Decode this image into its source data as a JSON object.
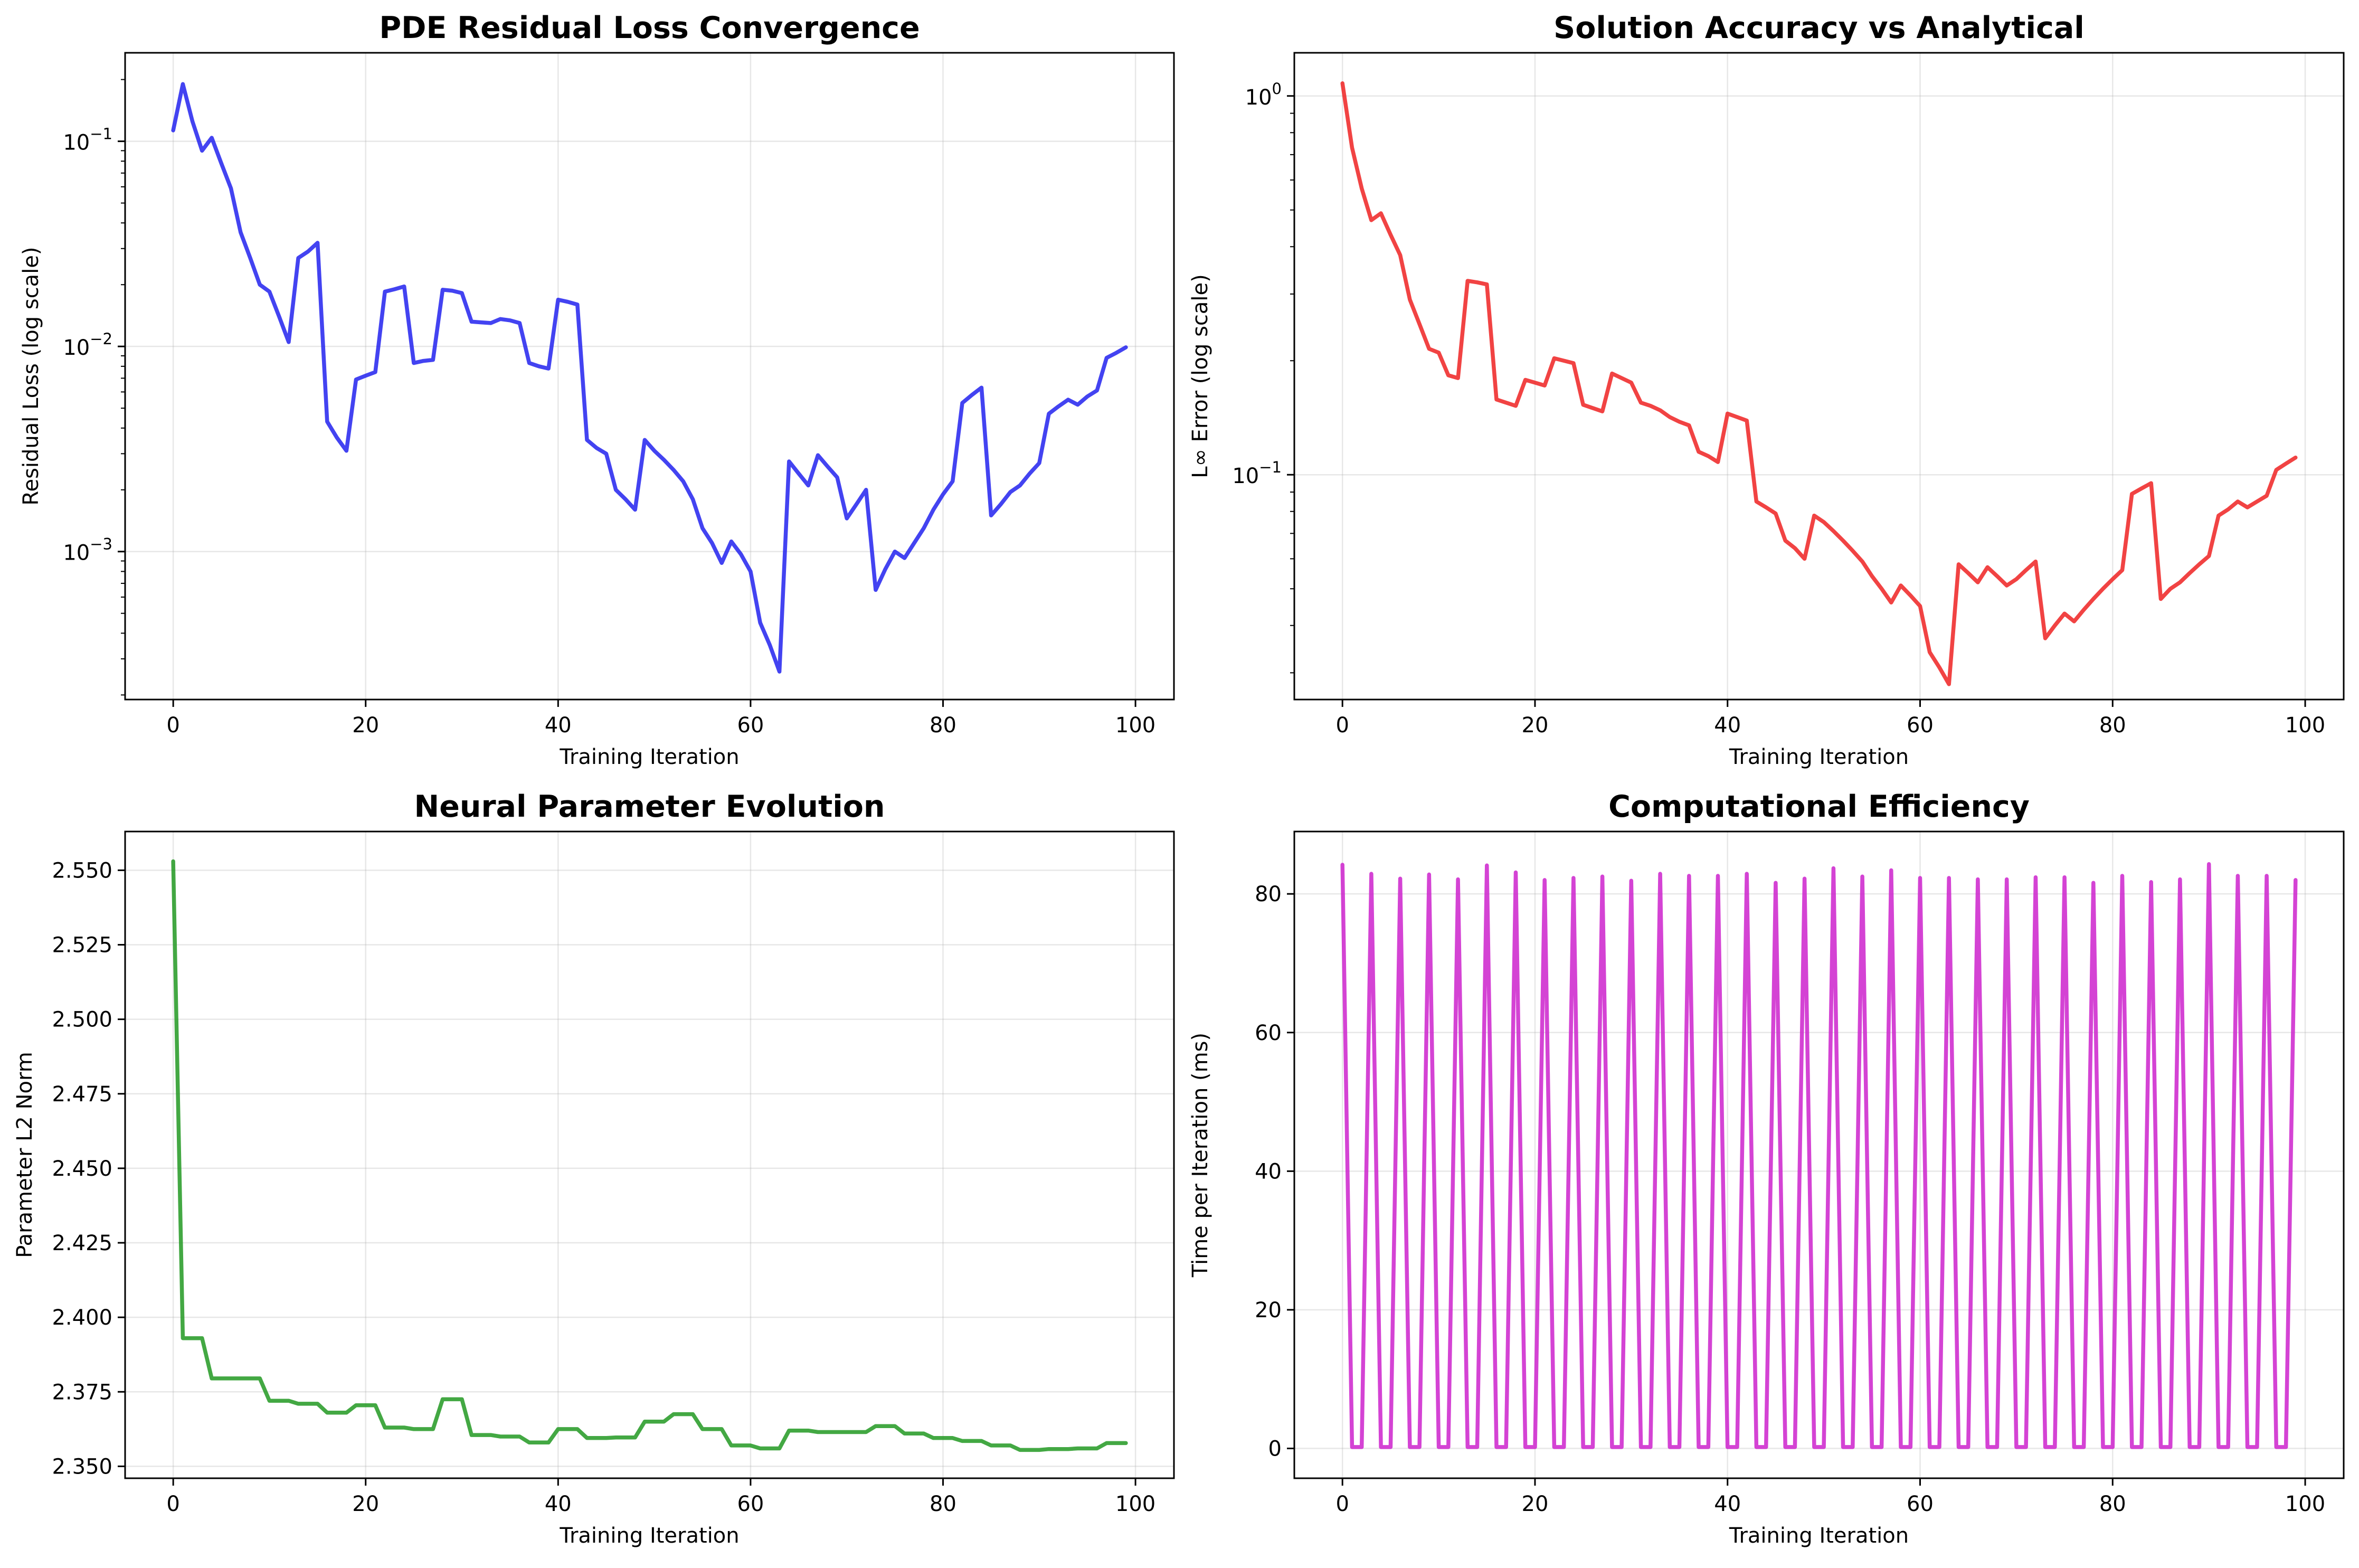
{
  "chart_data": [
    {
      "type": "line",
      "title": "PDE Residual Loss Convergence",
      "xlabel": "Training Iteration",
      "ylabel": "Residual Loss (log scale)",
      "yscale": "log",
      "xlim": [
        -5,
        104
      ],
      "ylim": [
        0.00019,
        0.27
      ],
      "xticks": [
        0,
        20,
        40,
        60,
        80,
        100
      ],
      "yticks": [
        {
          "value": 0.1,
          "base": "10",
          "exp": "−1"
        },
        {
          "value": 0.01,
          "base": "10",
          "exp": "−2"
        },
        {
          "value": 0.001,
          "base": "10",
          "exp": "−3"
        }
      ],
      "grid": true,
      "color": "#2222ee",
      "x": [
        0,
        1,
        2,
        3,
        4,
        5,
        6,
        7,
        8,
        9,
        10,
        11,
        12,
        13,
        14,
        15,
        16,
        17,
        18,
        19,
        20,
        21,
        22,
        23,
        24,
        25,
        26,
        27,
        28,
        29,
        30,
        31,
        32,
        33,
        34,
        35,
        36,
        37,
        38,
        39,
        40,
        41,
        42,
        43,
        44,
        45,
        46,
        47,
        48,
        49,
        50,
        51,
        52,
        53,
        54,
        55,
        56,
        57,
        58,
        59,
        60,
        61,
        62,
        63,
        64,
        65,
        66,
        67,
        68,
        69,
        70,
        71,
        72,
        73,
        74,
        75,
        76,
        77,
        78,
        79,
        80,
        81,
        82,
        83,
        84,
        85,
        86,
        87,
        88,
        89,
        90,
        91,
        92,
        93,
        94,
        95,
        96,
        97,
        98,
        99
      ],
      "y": [
        0.113,
        0.19,
        0.125,
        0.09,
        0.104,
        0.078,
        0.059,
        0.036,
        0.027,
        0.02,
        0.0185,
        0.014,
        0.0105,
        0.027,
        0.029,
        0.032,
        0.0043,
        0.0036,
        0.0031,
        0.0069,
        0.0072,
        0.0075,
        0.0185,
        0.019,
        0.0196,
        0.0083,
        0.0085,
        0.0086,
        0.0189,
        0.0187,
        0.0182,
        0.0132,
        0.0131,
        0.013,
        0.0136,
        0.0134,
        0.013,
        0.0083,
        0.008,
        0.0078,
        0.0169,
        0.0165,
        0.016,
        0.0035,
        0.0032,
        0.003,
        0.002,
        0.0018,
        0.0016,
        0.0035,
        0.0031,
        0.0028,
        0.0025,
        0.0022,
        0.0018,
        0.0013,
        0.0011,
        0.00088,
        0.00112,
        0.00097,
        0.0008,
        0.00045,
        0.00035,
        0.00026,
        0.00275,
        0.0024,
        0.0021,
        0.00295,
        0.0026,
        0.0023,
        0.00145,
        0.0017,
        0.002,
        0.00065,
        0.00082,
        0.001,
        0.00093,
        0.0011,
        0.0013,
        0.0016,
        0.0019,
        0.0022,
        0.0053,
        0.0058,
        0.0063,
        0.0015,
        0.0017,
        0.00195,
        0.0021,
        0.0024,
        0.0027,
        0.0047,
        0.0051,
        0.0055,
        0.0052,
        0.0057,
        0.0061,
        0.0088,
        0.0093,
        0.0099
      ]
    },
    {
      "type": "line",
      "title": "Solution Accuracy vs Analytical",
      "xlabel": "Training Iteration",
      "ylabel": "L∞ Error (log scale)",
      "yscale": "log",
      "xlim": [
        -5,
        104
      ],
      "ylim": [
        0.0255,
        1.3
      ],
      "xticks": [
        0,
        20,
        40,
        60,
        80,
        100
      ],
      "yticks": [
        {
          "value": 1.0,
          "base": "10",
          "exp": "0"
        },
        {
          "value": 0.1,
          "base": "10",
          "exp": "−1"
        }
      ],
      "grid": true,
      "color": "#ee2222",
      "x": [
        0,
        1,
        2,
        3,
        4,
        5,
        6,
        7,
        8,
        9,
        10,
        11,
        12,
        13,
        14,
        15,
        16,
        17,
        18,
        19,
        20,
        21,
        22,
        23,
        24,
        25,
        26,
        27,
        28,
        29,
        30,
        31,
        32,
        33,
        34,
        35,
        36,
        37,
        38,
        39,
        40,
        41,
        42,
        43,
        44,
        45,
        46,
        47,
        48,
        49,
        50,
        51,
        52,
        53,
        54,
        55,
        56,
        57,
        58,
        59,
        60,
        61,
        62,
        63,
        64,
        65,
        66,
        67,
        68,
        69,
        70,
        71,
        72,
        73,
        74,
        75,
        76,
        77,
        78,
        79,
        80,
        81,
        82,
        83,
        84,
        85,
        86,
        87,
        88,
        89,
        90,
        91,
        92,
        93,
        94,
        95,
        96,
        97,
        98,
        99
      ],
      "y": [
        1.08,
        0.73,
        0.57,
        0.47,
        0.49,
        0.43,
        0.38,
        0.29,
        0.25,
        0.215,
        0.21,
        0.183,
        0.18,
        0.325,
        0.322,
        0.318,
        0.158,
        0.155,
        0.152,
        0.178,
        0.175,
        0.172,
        0.203,
        0.2,
        0.197,
        0.153,
        0.15,
        0.147,
        0.185,
        0.18,
        0.175,
        0.155,
        0.152,
        0.148,
        0.142,
        0.138,
        0.135,
        0.115,
        0.112,
        0.108,
        0.145,
        0.142,
        0.139,
        0.085,
        0.082,
        0.079,
        0.067,
        0.064,
        0.06,
        0.078,
        0.075,
        0.071,
        0.067,
        0.063,
        0.059,
        0.054,
        0.05,
        0.046,
        0.051,
        0.048,
        0.045,
        0.034,
        0.031,
        0.028,
        0.058,
        0.055,
        0.052,
        0.057,
        0.054,
        0.051,
        0.053,
        0.056,
        0.059,
        0.037,
        0.04,
        0.043,
        0.041,
        0.044,
        0.047,
        0.05,
        0.053,
        0.056,
        0.089,
        0.092,
        0.095,
        0.047,
        0.05,
        0.052,
        0.055,
        0.058,
        0.061,
        0.078,
        0.081,
        0.085,
        0.082,
        0.085,
        0.088,
        0.103,
        0.107,
        0.111
      ]
    },
    {
      "type": "line",
      "title": "Neural Parameter Evolution",
      "xlabel": "Training Iteration",
      "ylabel": "Parameter L2 Norm",
      "yscale": "linear",
      "xlim": [
        -5,
        104
      ],
      "ylim": [
        2.346,
        2.563
      ],
      "xticks": [
        0,
        20,
        40,
        60,
        80,
        100
      ],
      "yticks": [
        2.35,
        2.375,
        2.4,
        2.425,
        2.45,
        2.475,
        2.5,
        2.525,
        2.55
      ],
      "ytick_labels": [
        "2.350",
        "2.375",
        "2.400",
        "2.425",
        "2.450",
        "2.475",
        "2.500",
        "2.525",
        "2.550"
      ],
      "grid": true,
      "color": "#229922",
      "x": [
        0,
        1,
        2,
        3,
        4,
        5,
        6,
        7,
        8,
        9,
        10,
        11,
        12,
        13,
        14,
        15,
        16,
        17,
        18,
        19,
        20,
        21,
        22,
        23,
        24,
        25,
        26,
        27,
        28,
        29,
        30,
        31,
        32,
        33,
        34,
        35,
        36,
        37,
        38,
        39,
        40,
        41,
        42,
        43,
        44,
        45,
        46,
        47,
        48,
        49,
        50,
        51,
        52,
        53,
        54,
        55,
        56,
        57,
        58,
        59,
        60,
        61,
        62,
        63,
        64,
        65,
        66,
        67,
        68,
        69,
        70,
        71,
        72,
        73,
        74,
        75,
        76,
        77,
        78,
        79,
        80,
        81,
        82,
        83,
        84,
        85,
        86,
        87,
        88,
        89,
        90,
        91,
        92,
        93,
        94,
        95,
        96,
        97,
        98,
        99
      ],
      "y": [
        2.553,
        2.393,
        2.393,
        2.393,
        2.3795,
        2.3795,
        2.3795,
        2.3795,
        2.3795,
        2.3795,
        2.372,
        2.372,
        2.372,
        2.371,
        2.371,
        2.371,
        2.368,
        2.368,
        2.368,
        2.3705,
        2.3705,
        2.3705,
        2.363,
        2.363,
        2.363,
        2.3625,
        2.3625,
        2.3625,
        2.3725,
        2.3725,
        2.3725,
        2.3605,
        2.3605,
        2.3605,
        2.36,
        2.36,
        2.36,
        2.358,
        2.358,
        2.358,
        2.3625,
        2.3625,
        2.3625,
        2.3595,
        2.3595,
        2.3595,
        2.3597,
        2.3597,
        2.3597,
        2.365,
        2.365,
        2.365,
        2.3675,
        2.3675,
        2.3675,
        2.3625,
        2.3625,
        2.3625,
        2.357,
        2.357,
        2.357,
        2.356,
        2.356,
        2.356,
        2.362,
        2.362,
        2.362,
        2.3615,
        2.3615,
        2.3615,
        2.3615,
        2.3615,
        2.3615,
        2.3635,
        2.3635,
        2.3635,
        2.361,
        2.361,
        2.361,
        2.3595,
        2.3595,
        2.3595,
        2.3585,
        2.3585,
        2.3585,
        2.357,
        2.357,
        2.357,
        2.3555,
        2.3555,
        2.3555,
        2.3558,
        2.3558,
        2.3558,
        2.356,
        2.356,
        2.356,
        2.3578,
        2.3578,
        2.3578
      ]
    },
    {
      "type": "line",
      "title": "Computational Efficiency",
      "xlabel": "Training Iteration",
      "ylabel": "Time per Iteration (ms)",
      "yscale": "linear",
      "xlim": [
        -5,
        104
      ],
      "ylim": [
        -4.3,
        89
      ],
      "xticks": [
        0,
        20,
        40,
        60,
        80,
        100
      ],
      "yticks": [
        0,
        20,
        40,
        60,
        80
      ],
      "grid": true,
      "color": "#cc22cc",
      "x": [
        0,
        1,
        2,
        3,
        4,
        5,
        6,
        7,
        8,
        9,
        10,
        11,
        12,
        13,
        14,
        15,
        16,
        17,
        18,
        19,
        20,
        21,
        22,
        23,
        24,
        25,
        26,
        27,
        28,
        29,
        30,
        31,
        32,
        33,
        34,
        35,
        36,
        37,
        38,
        39,
        40,
        41,
        42,
        43,
        44,
        45,
        46,
        47,
        48,
        49,
        50,
        51,
        52,
        53,
        54,
        55,
        56,
        57,
        58,
        59,
        60,
        61,
        62,
        63,
        64,
        65,
        66,
        67,
        68,
        69,
        70,
        71,
        72,
        73,
        74,
        75,
        76,
        77,
        78,
        79,
        80,
        81,
        82,
        83,
        84,
        85,
        86,
        87,
        88,
        89,
        90,
        91,
        92,
        93,
        94,
        95,
        96,
        97,
        98,
        99
      ],
      "y": [
        84.2,
        0.2,
        0.2,
        82.9,
        0.2,
        0.2,
        82.2,
        0.2,
        0.2,
        82.8,
        0.2,
        0.2,
        82.1,
        0.2,
        0.2,
        84.1,
        0.2,
        0.2,
        83.1,
        0.2,
        0.2,
        82.0,
        0.2,
        0.2,
        82.3,
        0.2,
        0.2,
        82.5,
        0.2,
        0.2,
        81.9,
        0.2,
        0.2,
        82.9,
        0.2,
        0.2,
        82.6,
        0.2,
        0.2,
        82.6,
        0.2,
        0.2,
        82.9,
        0.2,
        0.2,
        81.6,
        0.2,
        0.2,
        82.2,
        0.2,
        0.2,
        83.7,
        0.2,
        0.2,
        82.5,
        0.2,
        0.2,
        83.4,
        0.2,
        0.2,
        82.3,
        0.2,
        0.2,
        82.3,
        0.2,
        0.2,
        82.1,
        0.2,
        0.2,
        82.1,
        0.2,
        0.2,
        82.4,
        0.2,
        0.2,
        82.4,
        0.2,
        0.2,
        81.6,
        0.2,
        0.2,
        82.6,
        0.2,
        0.2,
        81.7,
        0.2,
        0.2,
        82.1,
        0.2,
        0.2,
        84.3,
        0.2,
        0.2,
        82.6,
        0.2,
        0.2,
        82.6,
        0.2,
        0.2,
        82.0
      ]
    }
  ]
}
